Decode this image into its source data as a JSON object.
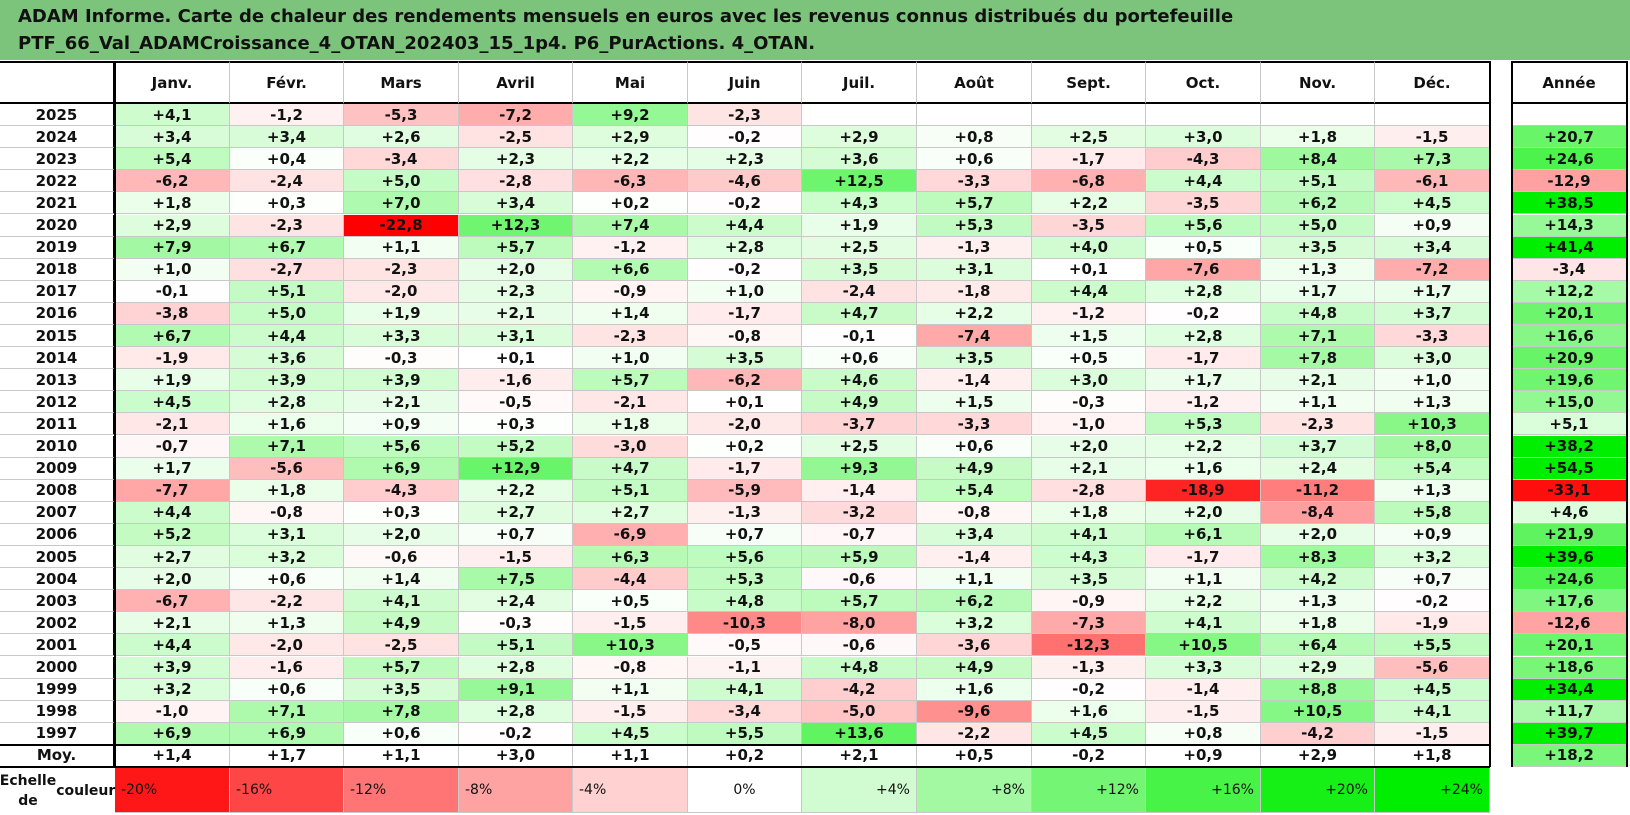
{
  "title": {
    "line1": "ADAM Informe. Carte de chaleur des rendements mensuels en euros avec les revenus connus distribués du portefeuille",
    "line2": "PTF_66_Val_ADAMCroissance_4_OTAN_202403_15_1p4. P6_PurActions. 4_OTAN."
  },
  "chart_data": {
    "type": "heatmap",
    "columns": [
      "Janv.",
      "Févr.",
      "Mars",
      "Avril",
      "Mai",
      "Juin",
      "Juil.",
      "Août",
      "Sept.",
      "Oct.",
      "Nov.",
      "Déc."
    ],
    "annual_header": "Année",
    "rows": [
      {
        "year": "2025",
        "values": [
          "+4,1",
          "-1,2",
          "-5,3",
          "-7,2",
          "+9,2",
          "-2,3",
          "",
          "",
          "",
          "",
          "",
          ""
        ],
        "annual": ""
      },
      {
        "year": "2024",
        "values": [
          "+3,4",
          "+3,4",
          "+2,6",
          "-2,5",
          "+2,9",
          "-0,2",
          "+2,9",
          "+0,8",
          "+2,5",
          "+3,0",
          "+1,8",
          "-1,5"
        ],
        "annual": "+20,7"
      },
      {
        "year": "2023",
        "values": [
          "+5,4",
          "+0,4",
          "-3,4",
          "+2,3",
          "+2,2",
          "+2,3",
          "+3,6",
          "+0,6",
          "-1,7",
          "-4,3",
          "+8,4",
          "+7,3"
        ],
        "annual": "+24,6"
      },
      {
        "year": "2022",
        "values": [
          "-6,2",
          "-2,4",
          "+5,0",
          "-2,8",
          "-6,3",
          "-4,6",
          "+12,5",
          "-3,3",
          "-6,8",
          "+4,4",
          "+5,1",
          "-6,1"
        ],
        "annual": "-12,9"
      },
      {
        "year": "2021",
        "values": [
          "+1,8",
          "+0,3",
          "+7,0",
          "+3,4",
          "+0,2",
          "-0,2",
          "+4,3",
          "+5,7",
          "+2,2",
          "-3,5",
          "+6,2",
          "+4,5"
        ],
        "annual": "+38,5"
      },
      {
        "year": "2020",
        "values": [
          "+2,9",
          "-2,3",
          "-22,8",
          "+12,3",
          "+7,4",
          "+4,4",
          "+1,9",
          "+5,3",
          "-3,5",
          "+5,6",
          "+5,0",
          "+0,9"
        ],
        "annual": "+14,3"
      },
      {
        "year": "2019",
        "values": [
          "+7,9",
          "+6,7",
          "+1,1",
          "+5,7",
          "-1,2",
          "+2,8",
          "+2,5",
          "-1,3",
          "+4,0",
          "+0,5",
          "+3,5",
          "+3,4"
        ],
        "annual": "+41,4"
      },
      {
        "year": "2018",
        "values": [
          "+1,0",
          "-2,7",
          "-2,3",
          "+2,0",
          "+6,6",
          "-0,2",
          "+3,5",
          "+3,1",
          "+0,1",
          "-7,6",
          "+1,3",
          "-7,2"
        ],
        "annual": "-3,4"
      },
      {
        "year": "2017",
        "values": [
          "-0,1",
          "+5,1",
          "-2,0",
          "+2,3",
          "-0,9",
          "+1,0",
          "-2,4",
          "-1,8",
          "+4,4",
          "+2,8",
          "+1,7",
          "+1,7"
        ],
        "annual": "+12,2"
      },
      {
        "year": "2016",
        "values": [
          "-3,8",
          "+5,0",
          "+1,9",
          "+2,1",
          "+1,4",
          "-1,7",
          "+4,7",
          "+2,2",
          "-1,2",
          "-0,2",
          "+4,8",
          "+3,7"
        ],
        "annual": "+20,1"
      },
      {
        "year": "2015",
        "values": [
          "+6,7",
          "+4,4",
          "+3,3",
          "+3,1",
          "-2,3",
          "-0,8",
          "-0,1",
          "-7,4",
          "+1,5",
          "+2,8",
          "+7,1",
          "-3,3"
        ],
        "annual": "+16,6"
      },
      {
        "year": "2014",
        "values": [
          "-1,9",
          "+3,6",
          "-0,3",
          "+0,1",
          "+1,0",
          "+3,5",
          "+0,6",
          "+3,5",
          "+0,5",
          "-1,7",
          "+7,8",
          "+3,0"
        ],
        "annual": "+20,9"
      },
      {
        "year": "2013",
        "values": [
          "+1,9",
          "+3,9",
          "+3,9",
          "-1,6",
          "+5,7",
          "-6,2",
          "+4,6",
          "-1,4",
          "+3,0",
          "+1,7",
          "+2,1",
          "+1,0"
        ],
        "annual": "+19,6"
      },
      {
        "year": "2012",
        "values": [
          "+4,5",
          "+2,8",
          "+2,1",
          "-0,5",
          "-2,1",
          "+0,1",
          "+4,9",
          "+1,5",
          "-0,3",
          "-1,2",
          "+1,1",
          "+1,3"
        ],
        "annual": "+15,0"
      },
      {
        "year": "2011",
        "values": [
          "-2,1",
          "+1,6",
          "+0,9",
          "+0,3",
          "+1,8",
          "-2,0",
          "-3,7",
          "-3,3",
          "-1,0",
          "+5,3",
          "-2,3",
          "+10,3"
        ],
        "annual": "+5,1"
      },
      {
        "year": "2010",
        "values": [
          "-0,7",
          "+7,1",
          "+5,6",
          "+5,2",
          "-3,0",
          "+0,2",
          "+2,5",
          "+0,6",
          "+2,0",
          "+2,2",
          "+3,7",
          "+8,0"
        ],
        "annual": "+38,2"
      },
      {
        "year": "2009",
        "values": [
          "+1,7",
          "-5,6",
          "+6,9",
          "+12,9",
          "+4,7",
          "-1,7",
          "+9,3",
          "+4,9",
          "+2,1",
          "+1,6",
          "+2,4",
          "+5,4"
        ],
        "annual": "+54,5"
      },
      {
        "year": "2008",
        "values": [
          "-7,7",
          "+1,8",
          "-4,3",
          "+2,2",
          "+5,1",
          "-5,9",
          "-1,4",
          "+5,4",
          "-2,8",
          "-18,9",
          "-11,2",
          "+1,3"
        ],
        "annual": "-33,1"
      },
      {
        "year": "2007",
        "values": [
          "+4,4",
          "-0,8",
          "+0,3",
          "+2,7",
          "+2,7",
          "-1,3",
          "-3,2",
          "-0,8",
          "+1,8",
          "+2,0",
          "-8,4",
          "+5,8"
        ],
        "annual": "+4,6"
      },
      {
        "year": "2006",
        "values": [
          "+5,2",
          "+3,1",
          "+2,0",
          "+0,7",
          "-6,9",
          "+0,7",
          "-0,7",
          "+3,4",
          "+4,1",
          "+6,1",
          "+2,0",
          "+0,9"
        ],
        "annual": "+21,9"
      },
      {
        "year": "2005",
        "values": [
          "+2,7",
          "+3,2",
          "-0,6",
          "-1,5",
          "+6,3",
          "+5,6",
          "+5,9",
          "-1,4",
          "+4,3",
          "-1,7",
          "+8,3",
          "+3,2"
        ],
        "annual": "+39,6"
      },
      {
        "year": "2004",
        "values": [
          "+2,0",
          "+0,6",
          "+1,4",
          "+7,5",
          "-4,4",
          "+5,3",
          "-0,6",
          "+1,1",
          "+3,5",
          "+1,1",
          "+4,2",
          "+0,7"
        ],
        "annual": "+24,6"
      },
      {
        "year": "2003",
        "values": [
          "-6,7",
          "-2,2",
          "+4,1",
          "+2,4",
          "+0,5",
          "+4,8",
          "+5,7",
          "+6,2",
          "-0,9",
          "+2,2",
          "+1,3",
          "-0,2"
        ],
        "annual": "+17,6"
      },
      {
        "year": "2002",
        "values": [
          "+2,1",
          "+1,3",
          "+4,9",
          "-0,3",
          "-1,5",
          "-10,3",
          "-8,0",
          "+3,2",
          "-7,3",
          "+4,1",
          "+1,8",
          "-1,9"
        ],
        "annual": "-12,6"
      },
      {
        "year": "2001",
        "values": [
          "+4,4",
          "-2,0",
          "-2,5",
          "+5,1",
          "+10,3",
          "-0,5",
          "-0,6",
          "-3,6",
          "-12,3",
          "+10,5",
          "+6,4",
          "+5,5"
        ],
        "annual": "+20,1"
      },
      {
        "year": "2000",
        "values": [
          "+3,9",
          "-1,6",
          "+5,7",
          "+2,8",
          "-0,8",
          "-1,1",
          "+4,8",
          "+4,9",
          "-1,3",
          "+3,3",
          "+2,9",
          "-5,6"
        ],
        "annual": "+18,6"
      },
      {
        "year": "1999",
        "values": [
          "+3,2",
          "+0,6",
          "+3,5",
          "+9,1",
          "+1,1",
          "+4,1",
          "-4,2",
          "+1,6",
          "-0,2",
          "-1,4",
          "+8,8",
          "+4,5"
        ],
        "annual": "+34,4"
      },
      {
        "year": "1998",
        "values": [
          "-1,0",
          "+7,1",
          "+7,8",
          "+2,8",
          "-1,5",
          "-3,4",
          "-5,0",
          "-9,6",
          "+1,6",
          "-1,5",
          "+10,5",
          "+4,1"
        ],
        "annual": "+11,7"
      },
      {
        "year": "1997",
        "values": [
          "+6,9",
          "+6,9",
          "+0,6",
          "-0,2",
          "+4,5",
          "+5,5",
          "+13,6",
          "-2,2",
          "+4,5",
          "+0,8",
          "-4,2",
          "-1,5"
        ],
        "annual": "+39,7"
      }
    ],
    "average": {
      "label": "Moy.",
      "values": [
        "+1,4",
        "+1,7",
        "+1,1",
        "+3,0",
        "+1,1",
        "+0,2",
        "+2,1",
        "+0,5",
        "-0,2",
        "+0,9",
        "+2,9",
        "+1,8"
      ],
      "annual": "+18,2"
    },
    "color_scale": {
      "label_line1": "Echelle de",
      "label_line2": "couleur",
      "stops": [
        "-20%",
        "-16%",
        "-12%",
        "-8%",
        "-4%",
        "0%",
        "+4%",
        "+8%",
        "+12%",
        "+16%",
        "+20%",
        "+24%"
      ]
    },
    "colors": {
      "negative_max": "#ff0000",
      "neutral": "#ffffff",
      "positive_max": "#00ee00"
    }
  }
}
